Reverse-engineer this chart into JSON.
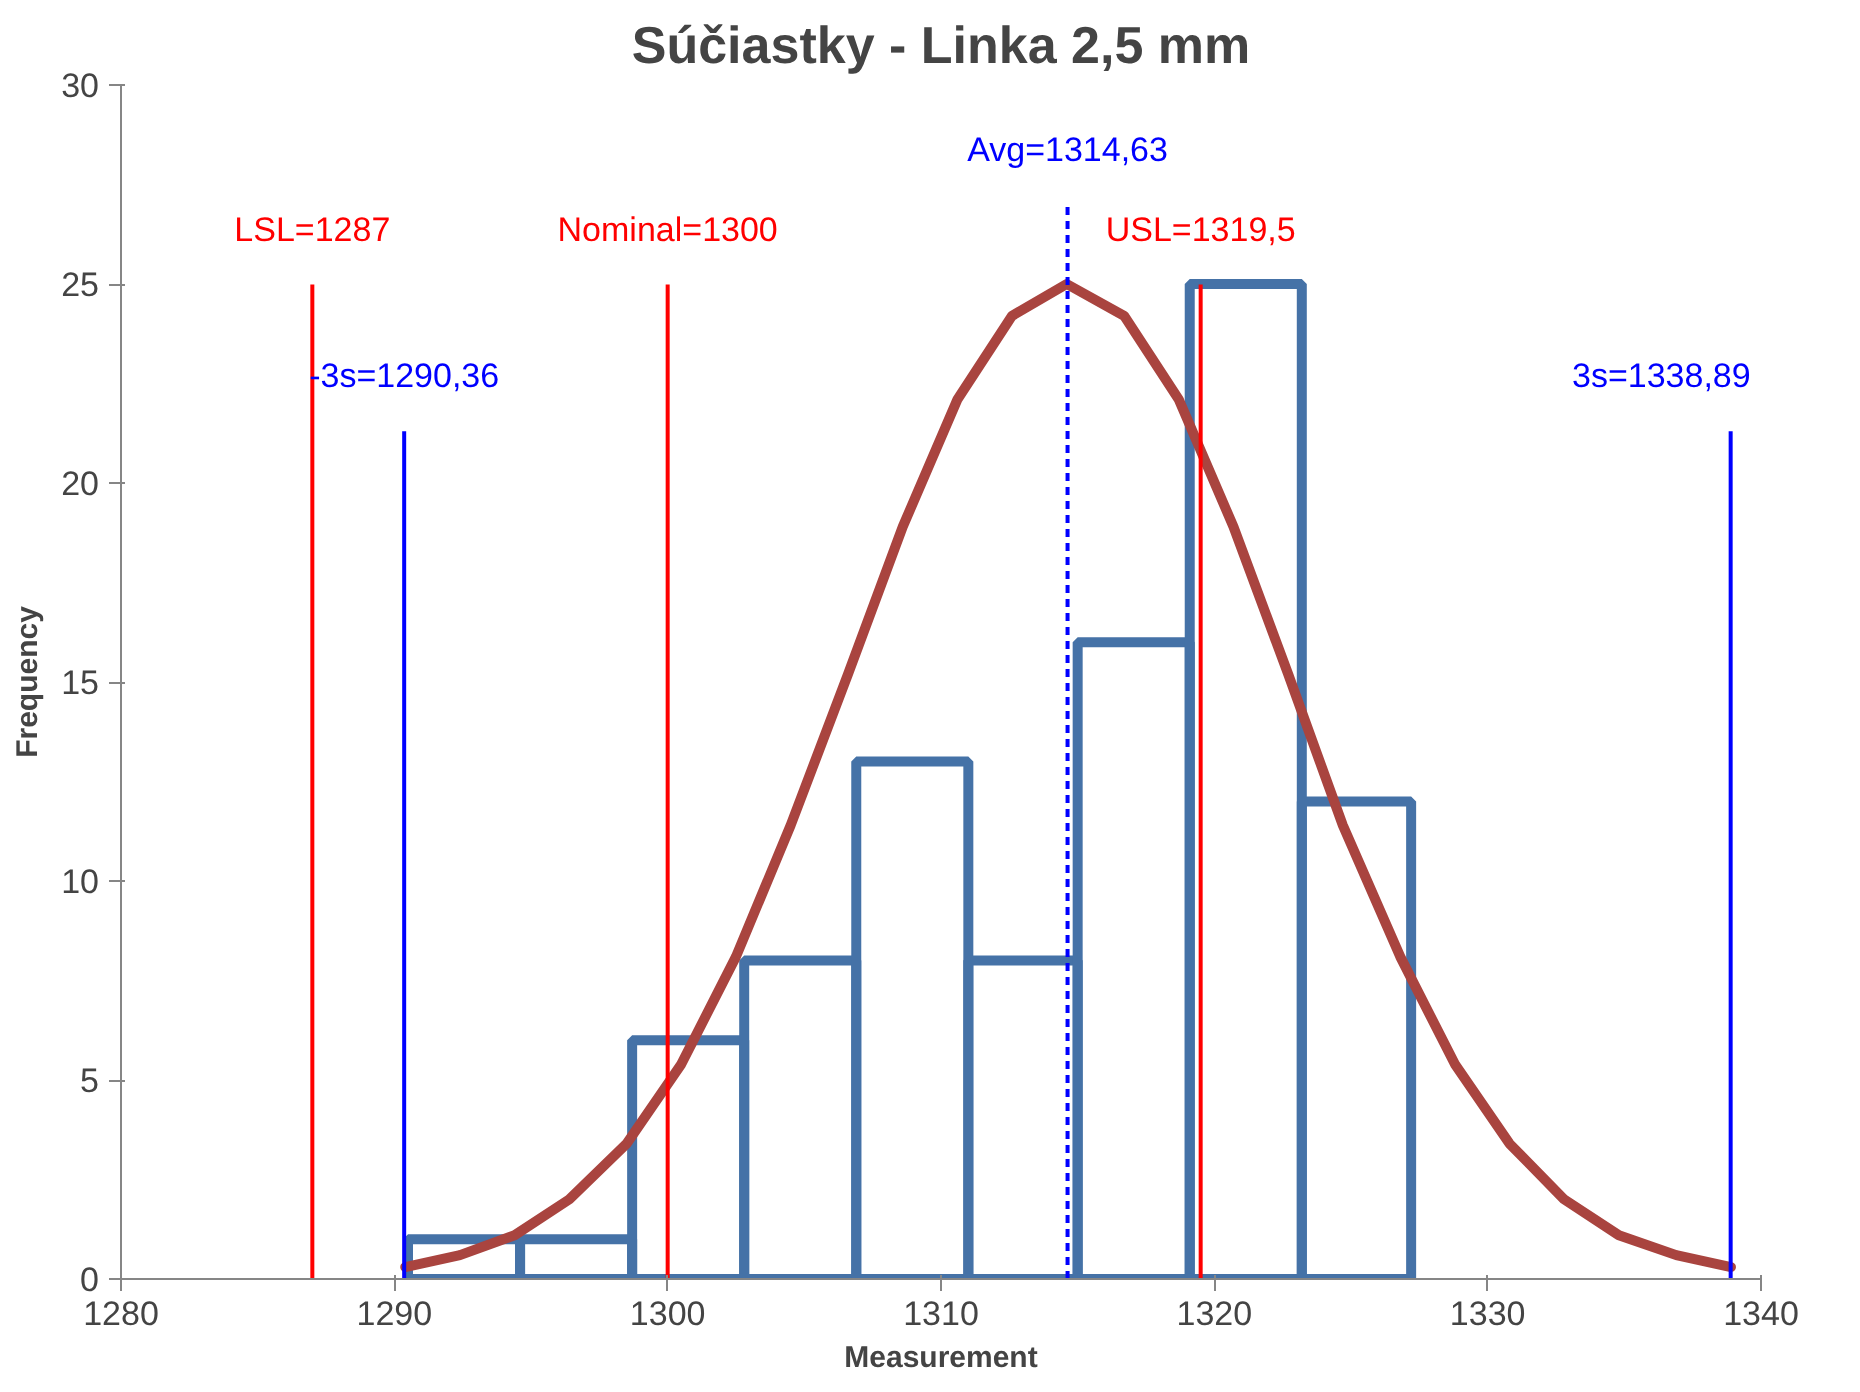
{
  "chart_data": {
    "type": "histogram",
    "title": "Súčiastky - Linka 2,5 mm",
    "xlabel": "Measurement",
    "ylabel": "Frequency",
    "bins": [
      1290.5,
      1294.6,
      1298.7,
      1302.8,
      1306.9,
      1311.0,
      1315.0,
      1319.1,
      1323.2,
      1327.2
    ],
    "values": [
      1,
      1,
      6,
      8,
      13,
      8,
      16,
      25,
      12
    ],
    "color": "#4572a7",
    "series": [
      {
        "type": "line",
        "color": "#a9443f",
        "x": [
          1290.4,
          1292.4,
          1294.4,
          1296.4,
          1298.5,
          1300.5,
          1302.5,
          1304.5,
          1306.6,
          1308.6,
          1310.6,
          1312.6,
          1314.6,
          1316.7,
          1318.7,
          1320.7,
          1322.7,
          1324.7,
          1326.8,
          1328.8,
          1330.8,
          1332.8,
          1334.8,
          1336.9,
          1338.9
        ],
        "values": [
          0.3,
          0.6,
          1.1,
          2.0,
          3.4,
          5.4,
          8.1,
          11.4,
          15.2,
          18.9,
          22.1,
          24.2,
          25.0,
          24.2,
          22.1,
          18.9,
          15.2,
          11.4,
          8.1,
          5.4,
          3.4,
          2.0,
          1.1,
          0.6,
          0.3
        ]
      }
    ],
    "ref_lines": [
      {
        "axis": "x",
        "value": 1287,
        "label": "LSL=1287",
        "color": "#ff0000",
        "line_style": "solid"
      },
      {
        "axis": "x",
        "value": 1300,
        "label": "Nominal=1300",
        "color": "#ff0000",
        "line_style": "solid"
      },
      {
        "axis": "x",
        "value": 1319.5,
        "label": "USL=1319,5",
        "color": "#ff0000",
        "line_style": "solid"
      },
      {
        "axis": "x",
        "value": 1314.63,
        "label": "Avg=1314,63",
        "color": "#0000ff",
        "line_style": "dashed"
      },
      {
        "axis": "x",
        "value": 1290.36,
        "label": "-3s=1290,36",
        "color": "#0000ff",
        "line_style": "solid"
      },
      {
        "axis": "x",
        "value": 1338.89,
        "label": "3s=1338,89",
        "color": "#0000ff",
        "line_style": "solid"
      }
    ],
    "xlim": [
      1280,
      1340
    ],
    "ylim": [
      0,
      30
    ],
    "xticks": [
      1280,
      1290,
      1300,
      1310,
      1320,
      1330,
      1340
    ],
    "yticks": [
      0,
      5,
      10,
      15,
      20,
      25,
      30
    ],
    "grid": false
  }
}
